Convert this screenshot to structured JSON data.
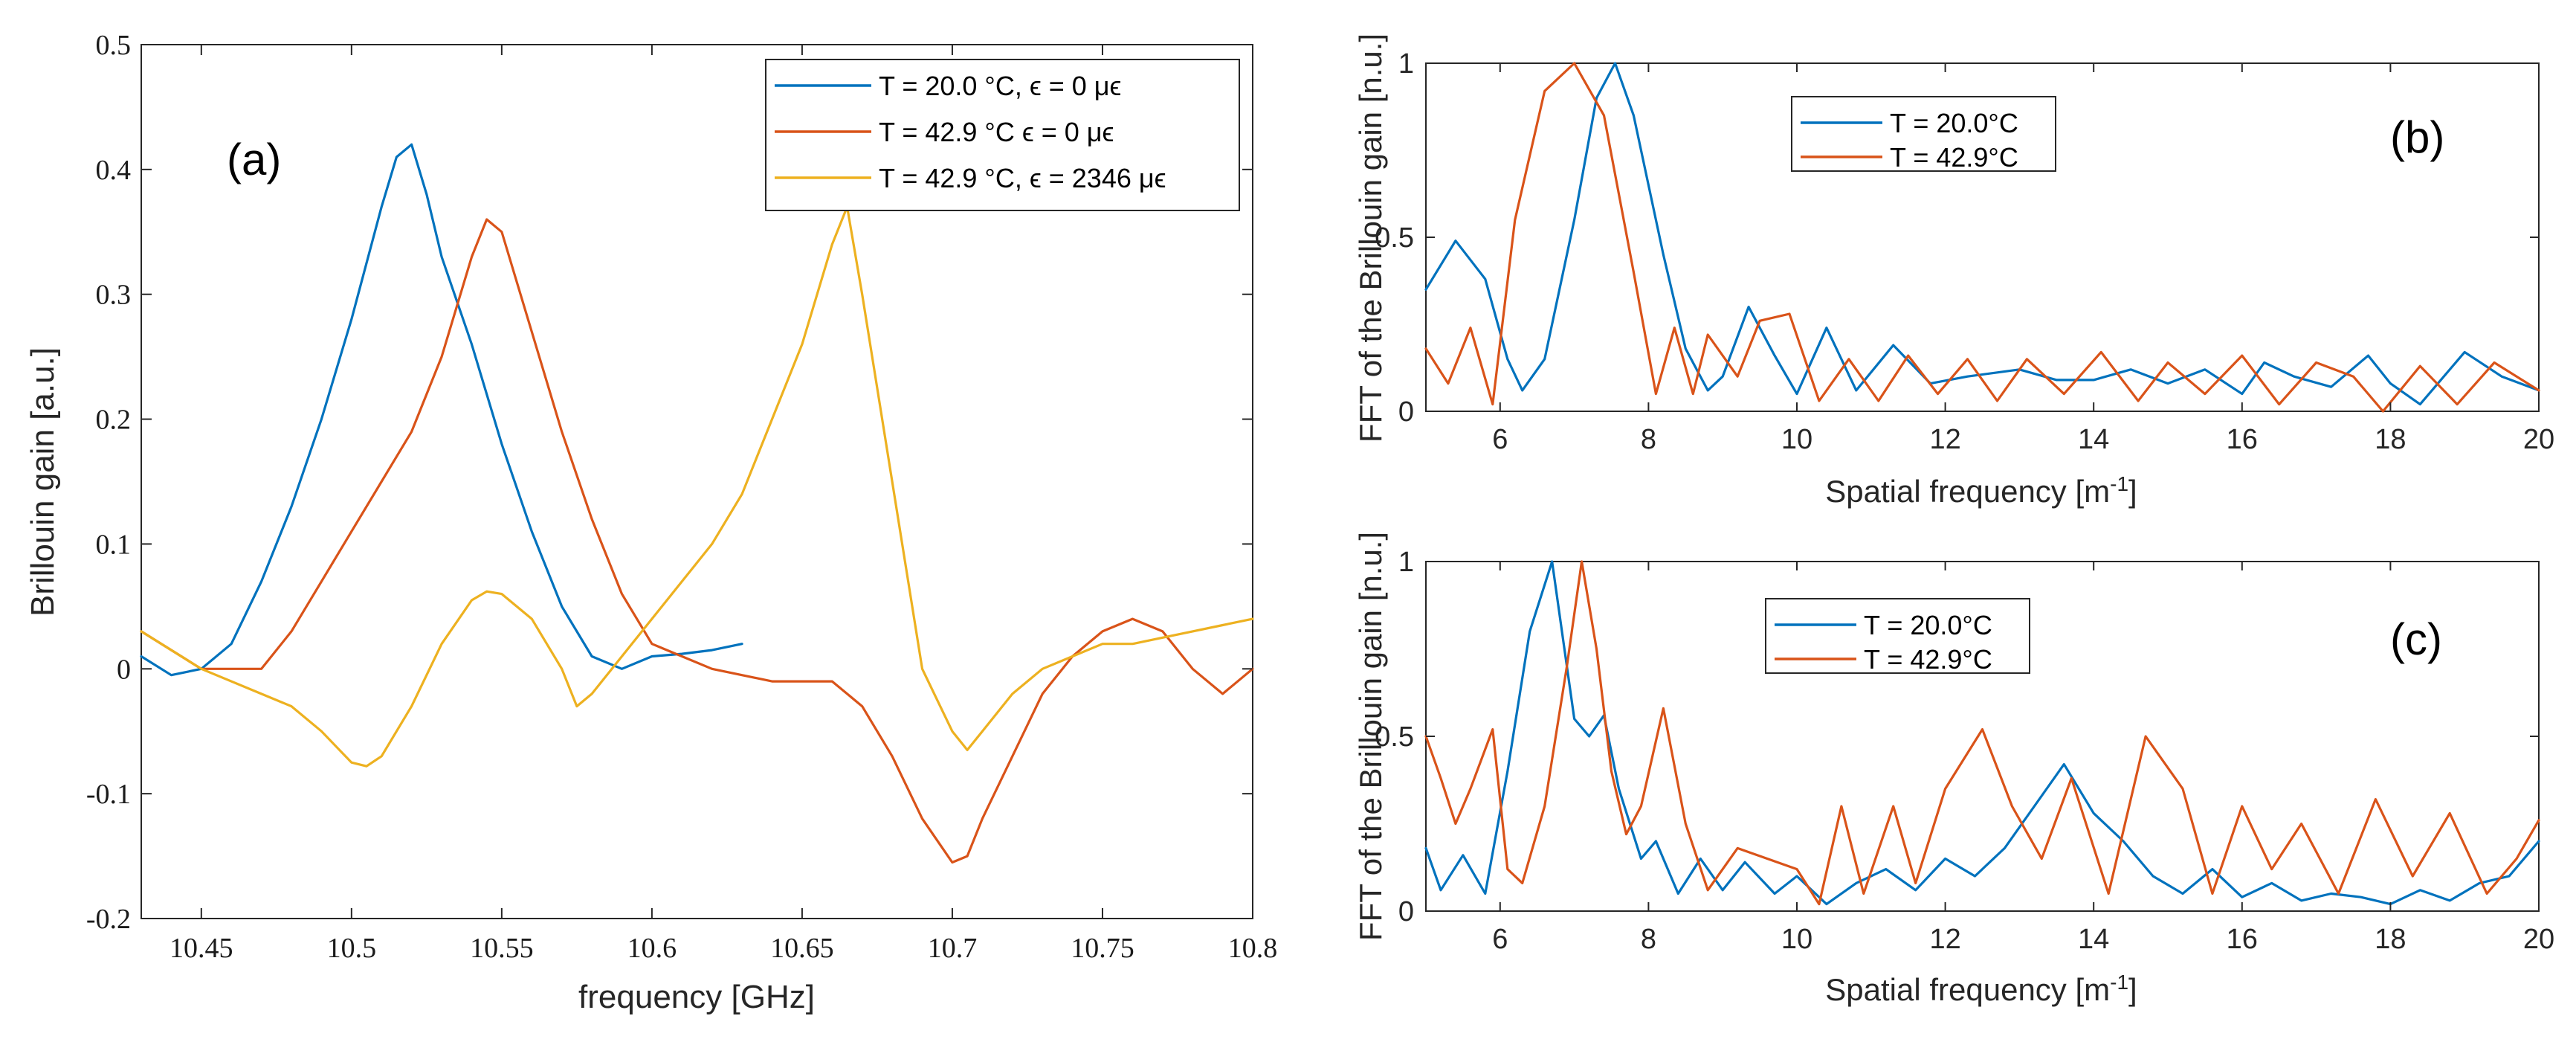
{
  "colors": {
    "blue": "#0072BD",
    "orange": "#D95319",
    "yellow": "#EDB120"
  },
  "chart_data": [
    {
      "id": "a",
      "type": "line",
      "panel_label": "(a)",
      "xlabel": "frequency  [GHz]",
      "ylabel": "Brillouin gain  [a.u.]",
      "xlim": [
        10.43,
        10.8
      ],
      "ylim": [
        -0.2,
        0.5
      ],
      "xticks": [
        10.45,
        10.5,
        10.55,
        10.6,
        10.65,
        10.7,
        10.75,
        10.8
      ],
      "xtick_labels": [
        "10.45",
        "10.5",
        "10.55",
        "10.6",
        "10.65",
        "10.7",
        "10.75",
        "10.8"
      ],
      "yticks": [
        -0.2,
        -0.1,
        0,
        0.1,
        0.2,
        0.3,
        0.4,
        0.5
      ],
      "ytick_labels": [
        "-0.2",
        "-0.1",
        "0",
        "0.1",
        "0.2",
        "0.3",
        "0.4",
        "0.5"
      ],
      "legend_position": "top-right",
      "series": [
        {
          "name": "T = 20.0 °C, ϵ =  0 μϵ",
          "color": "blue",
          "x": [
            10.43,
            10.44,
            10.45,
            10.46,
            10.47,
            10.48,
            10.49,
            10.5,
            10.51,
            10.515,
            10.52,
            10.525,
            10.53,
            10.54,
            10.55,
            10.56,
            10.57,
            10.58,
            10.59,
            10.6,
            10.61,
            10.62,
            10.63
          ],
          "y": [
            0.01,
            -0.005,
            0.0,
            0.02,
            0.07,
            0.13,
            0.2,
            0.28,
            0.37,
            0.41,
            0.42,
            0.38,
            0.33,
            0.26,
            0.18,
            0.11,
            0.05,
            0.01,
            0.0,
            0.01,
            0.012,
            0.015,
            0.02
          ]
        },
        {
          "name": "T = 42.9 °C ϵ = 0 μϵ",
          "color": "orange",
          "x": [
            10.43,
            10.45,
            10.47,
            10.48,
            10.49,
            10.5,
            10.51,
            10.52,
            10.53,
            10.54,
            10.545,
            10.55,
            10.56,
            10.57,
            10.58,
            10.59,
            10.6,
            10.62,
            10.64,
            10.66,
            10.67,
            10.68,
            10.69,
            10.7,
            10.705,
            10.71,
            10.72,
            10.73,
            10.74,
            10.75,
            10.76,
            10.77,
            10.78,
            10.79,
            10.8
          ],
          "y": [
            0.03,
            0.0,
            0.0,
            0.03,
            0.07,
            0.11,
            0.15,
            0.19,
            0.25,
            0.33,
            0.36,
            0.35,
            0.27,
            0.19,
            0.12,
            0.06,
            0.02,
            0.0,
            -0.01,
            -0.01,
            -0.03,
            -0.07,
            -0.12,
            -0.155,
            -0.15,
            -0.12,
            -0.07,
            -0.02,
            0.01,
            0.03,
            0.04,
            0.03,
            0.0,
            -0.02,
            0.0
          ]
        },
        {
          "name": "T = 42.9 °C, ϵ = 2346 μϵ",
          "color": "yellow",
          "x": [
            10.43,
            10.45,
            10.47,
            10.48,
            10.49,
            10.5,
            10.505,
            10.51,
            10.52,
            10.53,
            10.54,
            10.545,
            10.55,
            10.56,
            10.57,
            10.575,
            10.58,
            10.59,
            10.6,
            10.61,
            10.62,
            10.63,
            10.64,
            10.65,
            10.66,
            10.665,
            10.67,
            10.68,
            10.69,
            10.7,
            10.705,
            10.71,
            10.72,
            10.73,
            10.74,
            10.75,
            10.76,
            10.77,
            10.78,
            10.79,
            10.8
          ],
          "y": [
            0.03,
            0.0,
            -0.02,
            -0.03,
            -0.05,
            -0.075,
            -0.078,
            -0.07,
            -0.03,
            0.02,
            0.055,
            0.062,
            0.06,
            0.04,
            0.0,
            -0.03,
            -0.02,
            0.01,
            0.04,
            0.07,
            0.1,
            0.14,
            0.2,
            0.26,
            0.34,
            0.37,
            0.3,
            0.15,
            0.0,
            -0.05,
            -0.065,
            -0.05,
            -0.02,
            0.0,
            0.01,
            0.02,
            0.02,
            0.025,
            0.03,
            0.035,
            0.04
          ]
        }
      ]
    },
    {
      "id": "b",
      "type": "line",
      "panel_label": "(b)",
      "xlabel": "Spatial frequency  [m",
      "xlabel_sup": "-1",
      "xlabel_end": "]",
      "ylabel": "FFT of the Brillouin gain  [n.u.]",
      "xlim": [
        5,
        20
      ],
      "ylim": [
        0,
        1
      ],
      "xticks": [
        6,
        8,
        10,
        12,
        14,
        16,
        18,
        20
      ],
      "xtick_labels": [
        "6",
        "8",
        "10",
        "12",
        "14",
        "16",
        "18",
        "20"
      ],
      "yticks": [
        0,
        0.5,
        1
      ],
      "ytick_labels": [
        "0",
        "0.5",
        "1"
      ],
      "legend_position": "top-center",
      "series": [
        {
          "name": "T = 20.0°C",
          "color": "blue",
          "x": [
            5,
            5.4,
            5.8,
            6.1,
            6.3,
            6.6,
            7,
            7.3,
            7.55,
            7.8,
            8.2,
            8.5,
            8.8,
            9,
            9.35,
            9.7,
            10,
            10.4,
            10.8,
            11.3,
            11.8,
            12.3,
            13,
            13.5,
            14,
            14.5,
            15,
            15.5,
            16,
            16.3,
            16.7,
            17.2,
            17.7,
            18,
            18.4,
            19,
            19.5,
            20
          ],
          "y": [
            0.35,
            0.49,
            0.38,
            0.15,
            0.06,
            0.15,
            0.55,
            0.9,
            1.0,
            0.85,
            0.45,
            0.18,
            0.06,
            0.1,
            0.3,
            0.16,
            0.05,
            0.24,
            0.06,
            0.19,
            0.08,
            0.1,
            0.12,
            0.09,
            0.09,
            0.12,
            0.08,
            0.12,
            0.05,
            0.14,
            0.1,
            0.07,
            0.16,
            0.08,
            0.02,
            0.17,
            0.1,
            0.06
          ]
        },
        {
          "name": "T = 42.9°C",
          "color": "orange",
          "x": [
            5,
            5.3,
            5.6,
            5.9,
            6.2,
            6.6,
            7,
            7.4,
            7.8,
            8.1,
            8.35,
            8.6,
            8.8,
            9.2,
            9.5,
            9.9,
            10.3,
            10.7,
            11.1,
            11.5,
            11.9,
            12.3,
            12.7,
            13.1,
            13.6,
            14.1,
            14.6,
            15,
            15.5,
            16,
            16.5,
            17,
            17.5,
            17.9,
            18.4,
            18.9,
            19.4,
            20
          ],
          "y": [
            0.18,
            0.08,
            0.24,
            0.02,
            0.55,
            0.92,
            1.0,
            0.85,
            0.4,
            0.05,
            0.24,
            0.05,
            0.22,
            0.1,
            0.26,
            0.28,
            0.03,
            0.15,
            0.03,
            0.16,
            0.05,
            0.15,
            0.03,
            0.15,
            0.05,
            0.17,
            0.03,
            0.14,
            0.05,
            0.16,
            0.02,
            0.14,
            0.1,
            0.0,
            0.13,
            0.02,
            0.14,
            0.06
          ]
        }
      ]
    },
    {
      "id": "c",
      "type": "line",
      "panel_label": "(c)",
      "xlabel": "Spatial frequency  [m",
      "xlabel_sup": "-1",
      "xlabel_end": "]",
      "ylabel": "FFT of the Brillouin gain  [n.u.]",
      "xlim": [
        5,
        20
      ],
      "ylim": [
        0,
        1
      ],
      "xticks": [
        6,
        8,
        10,
        12,
        14,
        16,
        18,
        20
      ],
      "xtick_labels": [
        "6",
        "8",
        "10",
        "12",
        "14",
        "16",
        "18",
        "20"
      ],
      "yticks": [
        0,
        0.5,
        1
      ],
      "ytick_labels": [
        "0",
        "0.5",
        "1"
      ],
      "legend_position": "top-center",
      "series": [
        {
          "name": "T = 20.0°C",
          "color": "blue",
          "x": [
            5,
            5.2,
            5.5,
            5.8,
            6.1,
            6.4,
            6.7,
            7,
            7.2,
            7.4,
            7.6,
            7.9,
            8.1,
            8.4,
            8.7,
            9,
            9.3,
            9.7,
            10,
            10.4,
            10.8,
            11.2,
            11.6,
            12,
            12.4,
            12.8,
            13.2,
            13.6,
            14,
            14.4,
            14.8,
            15.2,
            15.6,
            16,
            16.4,
            16.8,
            17.2,
            17.6,
            18,
            18.4,
            18.8,
            19.2,
            19.6,
            20
          ],
          "y": [
            0.18,
            0.06,
            0.16,
            0.05,
            0.4,
            0.8,
            1.0,
            0.55,
            0.5,
            0.56,
            0.35,
            0.15,
            0.2,
            0.05,
            0.15,
            0.06,
            0.14,
            0.05,
            0.1,
            0.02,
            0.08,
            0.12,
            0.06,
            0.15,
            0.1,
            0.18,
            0.3,
            0.42,
            0.28,
            0.2,
            0.1,
            0.05,
            0.12,
            0.04,
            0.08,
            0.03,
            0.05,
            0.04,
            0.02,
            0.06,
            0.03,
            0.08,
            0.1,
            0.2
          ]
        },
        {
          "name": "T = 42.9°C",
          "color": "orange",
          "x": [
            5,
            5.2,
            5.4,
            5.6,
            5.9,
            6.1,
            6.3,
            6.6,
            6.9,
            7.1,
            7.3,
            7.5,
            7.7,
            7.9,
            8.2,
            8.5,
            8.8,
            9.2,
            9.6,
            10,
            10.3,
            10.6,
            10.9,
            11.3,
            11.6,
            12,
            12.5,
            12.9,
            13.3,
            13.7,
            14.2,
            14.7,
            15.2,
            15.6,
            16,
            16.4,
            16.8,
            17.3,
            17.8,
            18.3,
            18.8,
            19.3,
            19.7,
            20
          ],
          "y": [
            0.5,
            0.38,
            0.25,
            0.35,
            0.52,
            0.12,
            0.08,
            0.3,
            0.7,
            1.0,
            0.75,
            0.4,
            0.22,
            0.3,
            0.58,
            0.25,
            0.06,
            0.18,
            0.15,
            0.12,
            0.02,
            0.3,
            0.05,
            0.3,
            0.08,
            0.35,
            0.52,
            0.3,
            0.15,
            0.38,
            0.05,
            0.5,
            0.35,
            0.05,
            0.3,
            0.12,
            0.25,
            0.05,
            0.32,
            0.1,
            0.28,
            0.05,
            0.15,
            0.26
          ]
        }
      ]
    }
  ]
}
